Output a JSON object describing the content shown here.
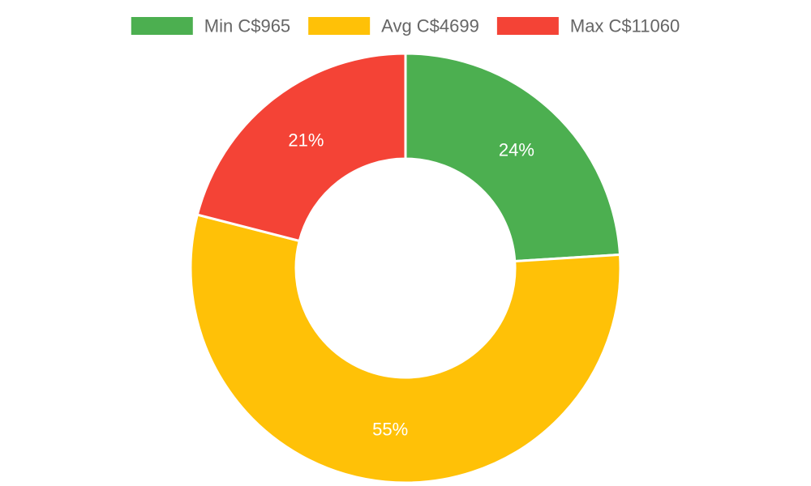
{
  "chart_data": {
    "type": "pie",
    "subtype": "doughnut",
    "legend_position": "top",
    "series": [
      {
        "name": "Min C$965",
        "value": 24,
        "label": "24%",
        "color": "#4caf50"
      },
      {
        "name": "Avg C$4699",
        "value": 55,
        "label": "55%",
        "color": "#ffc107"
      },
      {
        "name": "Max C$11060",
        "value": 21,
        "label": "21%",
        "color": "#f44336"
      }
    ]
  }
}
